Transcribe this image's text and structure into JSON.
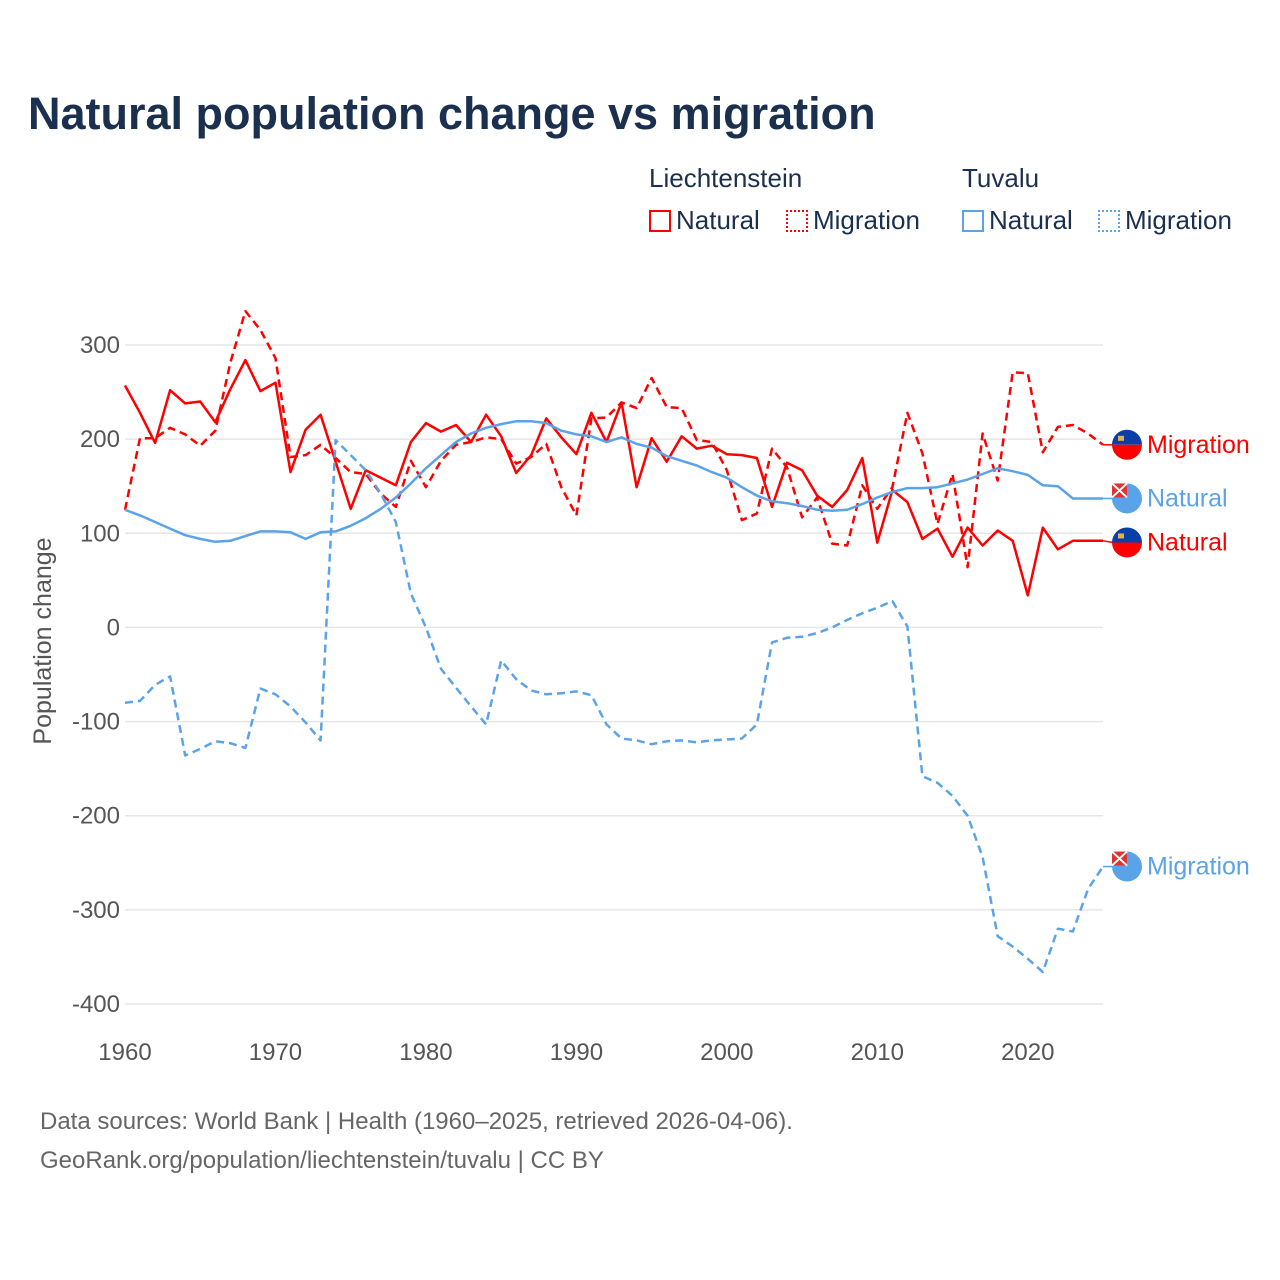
{
  "title": "Natural population change vs migration",
  "legend": {
    "groups": [
      {
        "name": "Liechtenstein",
        "items": [
          "Natural",
          "Migration"
        ]
      },
      {
        "name": "Tuvalu",
        "items": [
          "Natural",
          "Migration"
        ]
      }
    ]
  },
  "source": {
    "line1": "Data sources: World Bank | Health (1960–2025, retrieved 2026-04-06).",
    "line2": "GeoRank.org/population/liechtenstein/tuvalu | CC BY"
  },
  "colors": {
    "liechtenstein": "#ff0000",
    "tuvalu": "#5ba3e8"
  },
  "chart_data": {
    "type": "line",
    "title": "Natural population change vs migration",
    "xlabel": "",
    "ylabel": "Population change",
    "xlim": [
      1960,
      2025
    ],
    "ylim": [
      -400,
      300
    ],
    "xticks": [
      1960,
      1970,
      1980,
      1990,
      2000,
      2010,
      2020
    ],
    "yticks": [
      300,
      200,
      100,
      0,
      -100,
      -200,
      -300,
      -400
    ],
    "grid": true,
    "x_start": 1960,
    "series": [
      {
        "name": "Natural",
        "country": "Liechtenstein",
        "color": "#ff0000",
        "dash": false,
        "end_label": "Natural",
        "values": [
          257,
          228,
          196,
          252,
          238,
          240,
          218,
          253,
          284,
          251,
          260,
          165,
          210,
          226,
          176,
          126,
          167,
          159,
          151,
          197,
          217,
          208,
          215,
          197,
          226,
          203,
          164,
          183,
          222,
          202,
          184,
          228,
          197,
          239,
          149,
          201,
          176,
          203,
          190,
          193,
          184,
          183,
          180,
          128,
          175,
          167,
          140,
          128,
          146,
          180,
          90,
          146,
          133,
          94,
          105,
          75,
          106,
          87,
          103,
          92,
          34,
          106,
          83,
          92,
          92,
          92
        ]
      },
      {
        "name": "Migration",
        "country": "Liechtenstein",
        "color": "#ff0000",
        "dash": true,
        "end_label": "Migration",
        "values": [
          125,
          201,
          201,
          212,
          205,
          193,
          209,
          281,
          336,
          316,
          286,
          181,
          183,
          194,
          180,
          165,
          163,
          142,
          128,
          177,
          149,
          177,
          194,
          197,
          202,
          200,
          174,
          181,
          195,
          149,
          119,
          222,
          223,
          239,
          233,
          265,
          234,
          233,
          199,
          197,
          167,
          114,
          121,
          190,
          170,
          117,
          138,
          89,
          87,
          151,
          126,
          149,
          228,
          185,
          110,
          163,
          64,
          206,
          156,
          271,
          270,
          186,
          213,
          215,
          206,
          194
        ]
      },
      {
        "name": "Natural",
        "country": "Tuvalu",
        "color": "#5ba3e8",
        "dash": false,
        "end_label": "Natural",
        "values": [
          125,
          119,
          112,
          105,
          98,
          94,
          91,
          92,
          97,
          102,
          102,
          101,
          94,
          101,
          102,
          108,
          116,
          126,
          138,
          153,
          169,
          183,
          197,
          206,
          212,
          216,
          219,
          219,
          217,
          209,
          205,
          203,
          197,
          202,
          195,
          191,
          182,
          177,
          172,
          165,
          159,
          149,
          140,
          134,
          132,
          129,
          125,
          124,
          125,
          131,
          138,
          144,
          148,
          148,
          149,
          153,
          157,
          163,
          169,
          166,
          162,
          151,
          150,
          137,
          137,
          137
        ]
      },
      {
        "name": "Migration",
        "country": "Tuvalu",
        "color": "#5ba3e8",
        "dash": true,
        "end_label": "Migration",
        "values": [
          -80,
          -78,
          -61,
          -52,
          -136,
          -129,
          -121,
          -123,
          -128,
          -65,
          -71,
          -84,
          -101,
          -120,
          199,
          183,
          167,
          142,
          112,
          36,
          0,
          -44,
          -64,
          -84,
          -103,
          -35,
          -55,
          -67,
          -71,
          -70,
          -68,
          -72,
          -103,
          -118,
          -120,
          -124,
          -121,
          -120,
          -122,
          -120,
          -119,
          -118,
          -103,
          -16,
          -11,
          -10,
          -6,
          0,
          8,
          15,
          21,
          28,
          1,
          -158,
          -165,
          -179,
          -200,
          -244,
          -328,
          -339,
          -352,
          -366,
          -320,
          -323,
          -278,
          -254
        ]
      }
    ]
  }
}
